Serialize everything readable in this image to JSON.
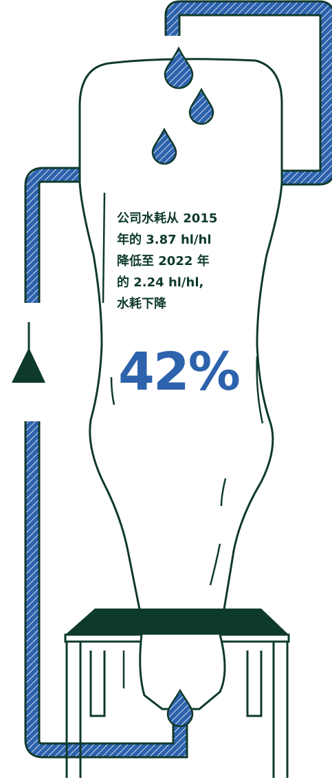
{
  "text": {
    "lines": [
      "公司水耗从 2015",
      "年的 3.87 hl/hl",
      "降低至 2022 年",
      "的 2.24 hl/hl,",
      "水耗下降"
    ],
    "stat": "42%"
  },
  "colors": {
    "ink": "#0e3a2a",
    "water": "#2d62ad",
    "background": "#ffffff"
  }
}
